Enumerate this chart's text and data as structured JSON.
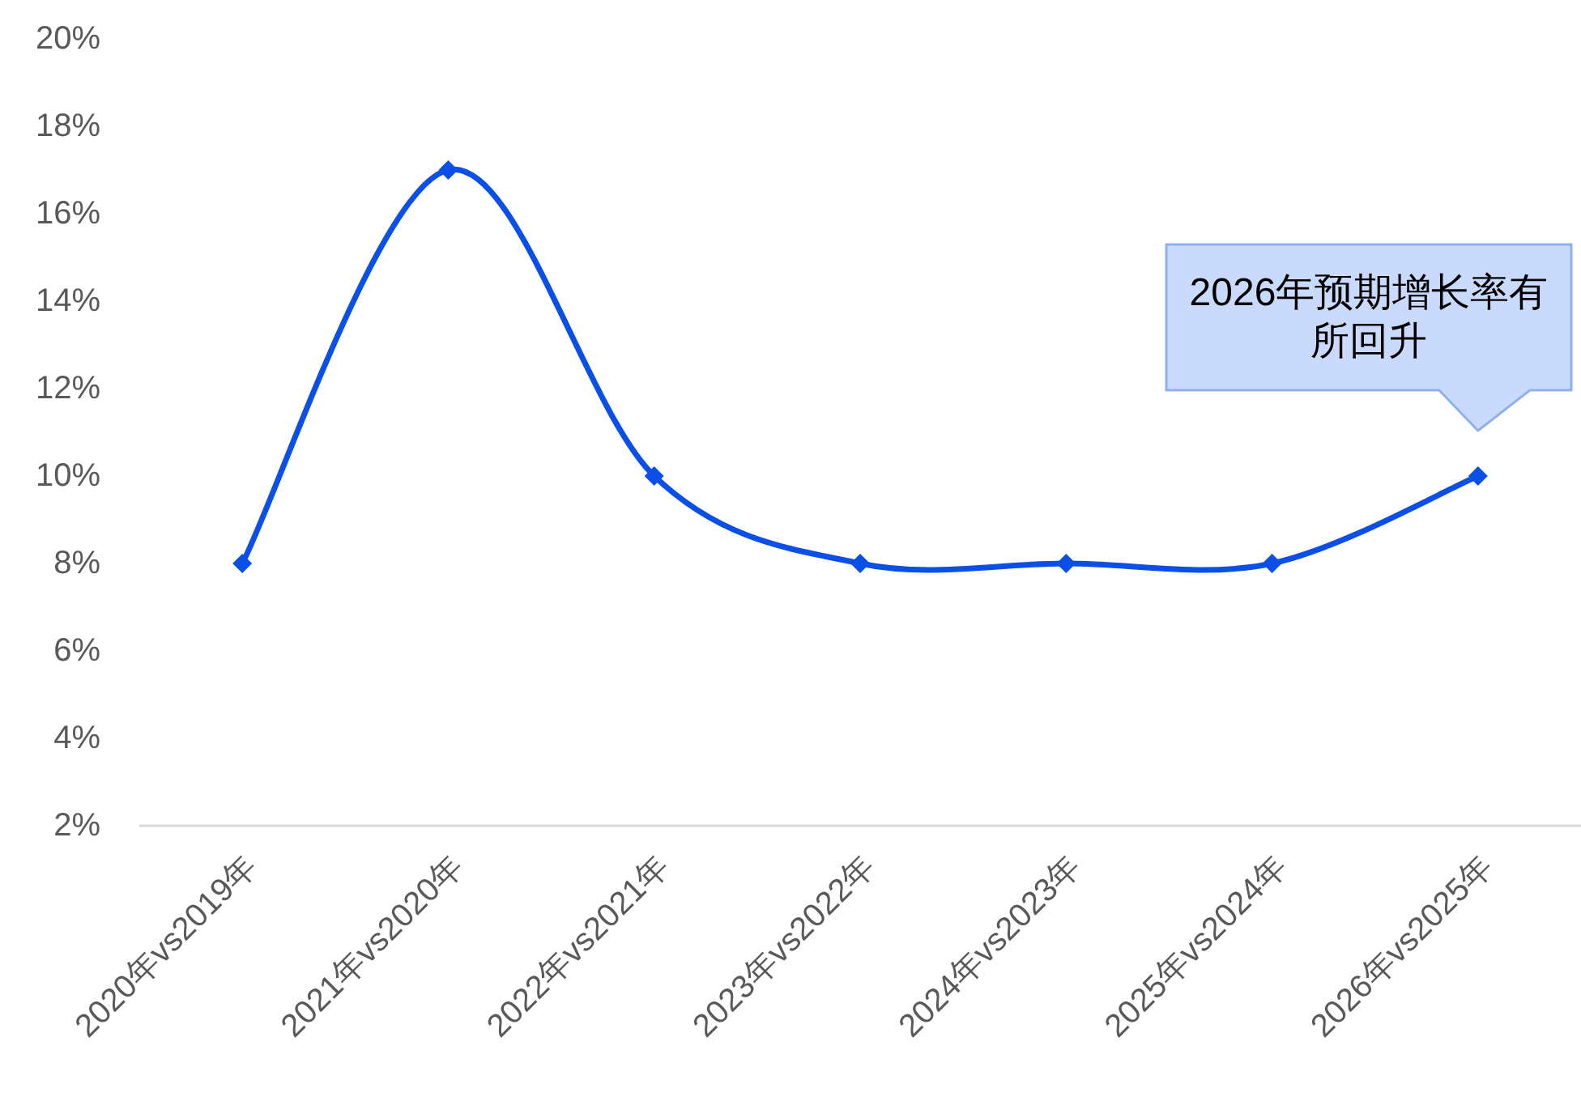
{
  "chart_data": {
    "type": "line",
    "categories": [
      "2020年vs2019年",
      "2021年vs2020年",
      "2022年vs2021年",
      "2023年vs2022年",
      "2024年vs2023年",
      "2025年vs2024年",
      "2026年vs2025年"
    ],
    "series": [
      {
        "color": "#0a4fe8",
        "values": [
          8,
          17,
          10,
          8,
          8,
          8,
          10
        ]
      }
    ],
    "ylim": [
      2,
      20
    ],
    "yticks": [
      {
        "value": 2,
        "label": "2%"
      },
      {
        "value": 4,
        "label": "4%"
      },
      {
        "value": 6,
        "label": "6%"
      },
      {
        "value": 8,
        "label": "8%"
      },
      {
        "value": 10,
        "label": "10%"
      },
      {
        "value": 12,
        "label": "12%"
      },
      {
        "value": 14,
        "label": "14%"
      },
      {
        "value": 16,
        "label": "16%"
      },
      {
        "value": 18,
        "label": "18%"
      },
      {
        "value": 20,
        "label": "20%"
      }
    ],
    "marker": "diamond",
    "line_style": "solid",
    "grid": false,
    "annotations": [
      {
        "text": "2026年预期增长率有所回升",
        "x": "2026年vs2025年",
        "y": 10
      }
    ]
  }
}
